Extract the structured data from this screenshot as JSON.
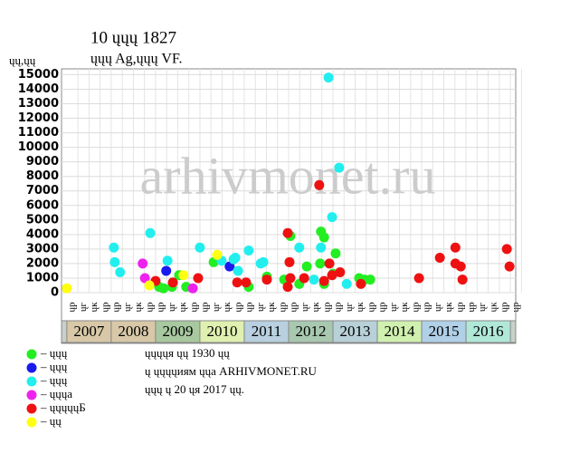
{
  "chart_data": {
    "type": "scatter",
    "title": "10 ųųų 1827",
    "subtitle": "ųųų Ag,ųųų VF.",
    "y_label": "ųų,ųų",
    "watermark": "arhivmonet.ru",
    "notes": [
      "ųųųųя ųų 1930 ųų",
      "ų ųųųųиям ųųа ARHIVMONET.RU",
      "ųųų ų 20 ųя 2017 ųų."
    ],
    "xlim": [
      2006.88,
      2017.12
    ],
    "ylim": [
      0,
      15400
    ],
    "yticks": [
      0,
      1000,
      2000,
      3000,
      4000,
      5000,
      6000,
      7000,
      8000,
      9000,
      10000,
      11000,
      12000,
      13000,
      14000,
      15000
    ],
    "grid": true,
    "years": [
      "2007",
      "2008",
      "2009",
      "2010",
      "2011",
      "2012",
      "2013",
      "2014",
      "2015",
      "2016"
    ],
    "year_colors": [
      "#d8c8a8",
      "#d8c8a8",
      "#a8c8a0",
      "#e0f0b0",
      "#b8d0e0",
      "#a8c8b0",
      "#b8d0d8",
      "#d0f0b0",
      "#b0d0e8",
      "#b0e8d8"
    ],
    "quarter_labels": [
      "ųр",
      "ųг",
      "ųк",
      "ųр",
      "ųр",
      "ųг",
      "ųк",
      "ųр",
      "ųр",
      "ųг",
      "ųк",
      "ųр",
      "ųр",
      "ųг",
      "ųк",
      "ųр",
      "ųр",
      "ųг",
      "ųк",
      "ųр",
      "ųр",
      "ųг",
      "ųк",
      "ųр",
      "ųр",
      "ųг",
      "ųк",
      "ųр",
      "ųр",
      "ųг",
      "ųк",
      "ųр",
      "ųр",
      "ųг",
      "ųк",
      "ųр",
      "ųр",
      "ųг",
      "ųк",
      "ųр",
      "ųр"
    ],
    "series": [
      {
        "name": "– ųųų",
        "color": "#22ee22",
        "x": [
          2009.08,
          2009.18,
          2009.37,
          2009.53,
          2009.69,
          2010.31,
          2011.1,
          2011.51,
          2011.9,
          2012.04,
          2012.24,
          2012.41,
          2012.71,
          2012.73,
          2012.8,
          2012.8,
          2013.06,
          2013.0,
          2013.59,
          2013.71,
          2013.84
        ],
        "values": [
          400,
          300,
          400,
          1200,
          400,
          2100,
          400,
          1100,
          900,
          3900,
          600,
          1800,
          2000,
          4200,
          3800,
          600,
          2700,
          1300,
          1000,
          900,
          900
        ]
      },
      {
        "name": "– ųųų",
        "color": "#1a1aee",
        "x": [
          2009.24,
          2010.67
        ],
        "values": [
          1500,
          1800
        ]
      },
      {
        "name": "– ųųų",
        "color": "#22eeee",
        "x": [
          2008.06,
          2008.08,
          2008.2,
          2008.88,
          2009.27,
          2010.0,
          2010.49,
          2010.76,
          2010.8,
          2010.86,
          2011.1,
          2011.37,
          2011.43,
          2012.24,
          2012.73,
          2012.9,
          2012.98,
          2013.14,
          2013.31,
          2012.57
        ],
        "values": [
          3100,
          2100,
          1400,
          4100,
          2200,
          3100,
          2200,
          2300,
          2400,
          1500,
          2900,
          2000,
          2100,
          3100,
          3100,
          14800,
          5200,
          8600,
          600,
          900
        ]
      },
      {
        "name": "– ųųųа",
        "color": "#ee22ee",
        "x": [
          2008.71,
          2008.76,
          2009.84
        ],
        "values": [
          2000,
          1000,
          300
        ]
      },
      {
        "name": "– ųųųųųБ",
        "color": "#ee1111",
        "x": [
          2009.0,
          2009.39,
          2009.96,
          2010.84,
          2011.04,
          2011.51,
          2011.98,
          2012.02,
          2011.98,
          2012.04,
          2012.35,
          2012.69,
          2012.8,
          2012.92,
          2012.98,
          2013.16,
          2013.63,
          2014.94,
          2015.41,
          2015.76,
          2015.76,
          2015.88,
          2015.92,
          2016.92,
          2016.98
        ],
        "values": [
          800,
          700,
          1000,
          700,
          700,
          900,
          4100,
          2100,
          400,
          1000,
          1000,
          7400,
          800,
          2000,
          1200,
          1400,
          600,
          1000,
          2400,
          3100,
          2000,
          1800,
          900,
          3000,
          1800
        ]
      },
      {
        "name": "– ųų",
        "color": "#ffff11",
        "x": [
          2007.0,
          2008.86,
          2009.63,
          2010.39
        ],
        "values": [
          300,
          500,
          1200,
          2600
        ]
      }
    ]
  }
}
